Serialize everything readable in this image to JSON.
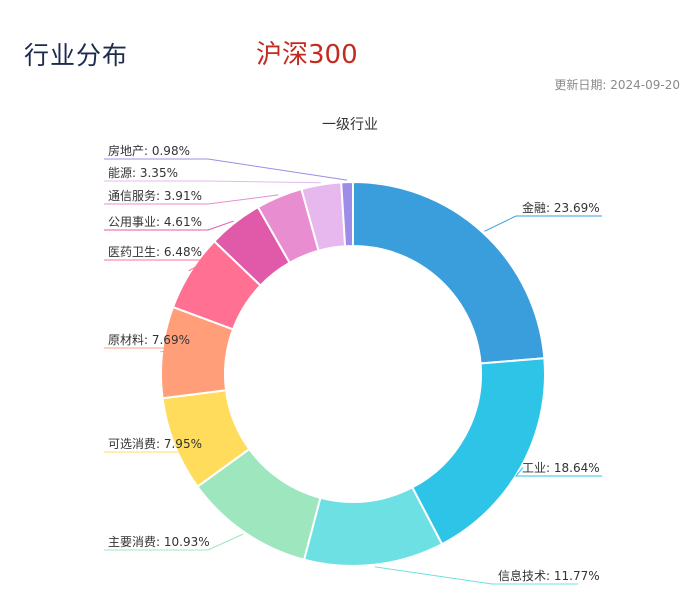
{
  "header": {
    "title": "行业分布",
    "index_name": "沪深300",
    "update_label": "更新日期:",
    "update_date": "2024-09-20"
  },
  "chart_data": {
    "type": "pie",
    "donut": true,
    "title": "一级行业",
    "categories": [
      "金融",
      "工业",
      "信息技术",
      "主要消费",
      "可选消费",
      "原材料",
      "医药卫生",
      "公用事业",
      "通信服务",
      "能源",
      "房地产"
    ],
    "values": [
      23.69,
      18.64,
      11.77,
      10.93,
      7.95,
      7.69,
      6.48,
      4.61,
      3.91,
      3.35,
      0.98
    ],
    "labels": [
      "金融: 23.69%",
      "工业: 18.64%",
      "信息技术: 11.77%",
      "主要消费: 10.93%",
      "可选消费: 7.95%",
      "原材料: 7.69%",
      "医药卫生: 6.48%",
      "公用事业: 4.61%",
      "通信服务: 3.91%",
      "能源: 3.35%",
      "房地产: 0.98%"
    ],
    "colors": [
      "#3a9edc",
      "#2ec4e8",
      "#6de0e3",
      "#9ee7be",
      "#ffdc5c",
      "#ff9e78",
      "#ff7093",
      "#e05aa9",
      "#e88ed0",
      "#e6b8ee",
      "#9d8ce8"
    ]
  }
}
